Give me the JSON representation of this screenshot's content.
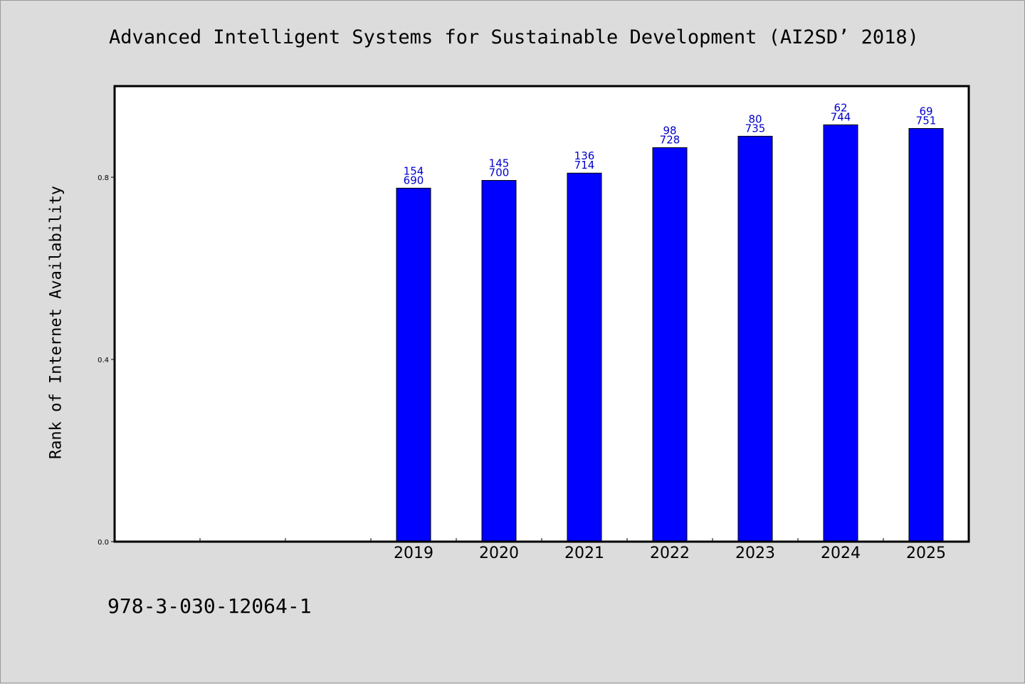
{
  "chart_data": {
    "type": "bar",
    "title": "Advanced Intelligent Systems for Sustainable Development (AI2SD’ 2018)",
    "xlabel": "",
    "ylabel": "Rank of Internet Availability",
    "ylim": [
      0,
      1.0
    ],
    "yticks": [
      "0.0",
      "0.4",
      "0.8"
    ],
    "categories": [
      "2019",
      "2020",
      "2021",
      "2022",
      "2023",
      "2024",
      "2025"
    ],
    "leading_empty_slots": 3,
    "values": [
      0.776,
      0.793,
      0.809,
      0.865,
      0.89,
      0.915,
      0.907
    ],
    "rank_labels": [
      "154",
      "145",
      "136",
      "98",
      "80",
      "62",
      "69"
    ],
    "count_labels": [
      "690",
      "700",
      "714",
      "728",
      "735",
      "744",
      "751"
    ],
    "bar_color": "#0000ff",
    "label_color": "#0000cc",
    "grid": false,
    "legend": "none"
  },
  "footer": {
    "text": "978-3-030-12064-1"
  }
}
